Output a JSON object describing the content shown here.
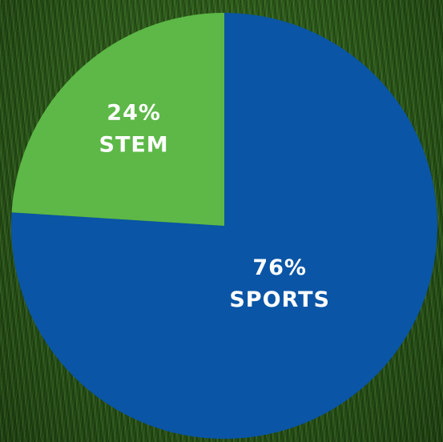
{
  "chart_data": {
    "type": "pie",
    "categories": [
      "SPORTS",
      "STEM"
    ],
    "values": [
      76,
      24
    ],
    "value_labels": [
      "76%",
      "24%"
    ],
    "colors": [
      "#0a55a5",
      "#5db847"
    ]
  }
}
